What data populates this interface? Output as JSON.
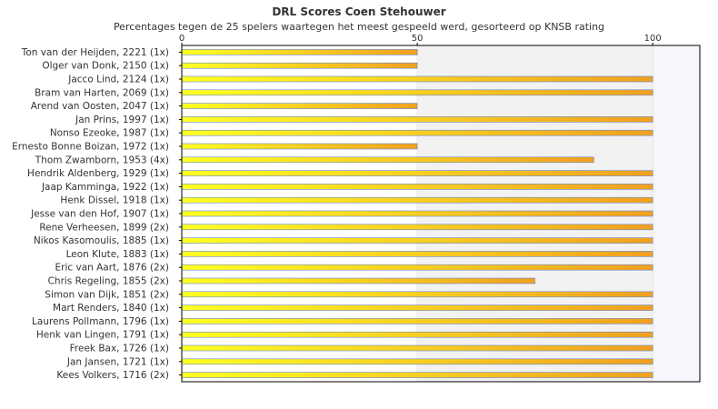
{
  "chart_data": {
    "type": "bar",
    "orientation": "horizontal",
    "title": "DRL Scores Coen Stehouwer",
    "subtitle": "Percentages tegen de 25 spelers waartegen het meest gespeeld werd, gesorteerd op KNSB rating",
    "xlim": [
      0,
      110
    ],
    "xticks": [
      0,
      50,
      100
    ],
    "grid": true,
    "categories": [
      "Ton van der Heijden, 2221 (1x)",
      "Olger van Donk, 2150 (1x)",
      "Jacco Lind, 2124 (1x)",
      "Bram van Harten, 2069 (1x)",
      "Arend van Oosten, 2047 (1x)",
      "Jan Prins, 1997 (1x)",
      "Nonso Ezeoke, 1987 (1x)",
      "Ernesto Bonne Boizan, 1972 (1x)",
      "Thom Zwamborn, 1953 (4x)",
      "Hendrik Aldenberg, 1929 (1x)",
      "Jaap Kamminga, 1922 (1x)",
      "Henk Dissel, 1918 (1x)",
      "Jesse van den Hof, 1907 (1x)",
      "Rene Verheesen, 1899 (2x)",
      "Nikos Kasomoulis, 1885 (1x)",
      "Leon Klute, 1883 (1x)",
      "Eric van Aart, 1876 (2x)",
      "Chris Regeling, 1855 (2x)",
      "Simon van Dijk, 1851 (2x)",
      "Mart Renders, 1840 (1x)",
      "Laurens Pollmann, 1796 (1x)",
      "Henk van Lingen, 1791 (1x)",
      "Freek Bax, 1726 (1x)",
      "Jan Jansen, 1721 (1x)",
      "Kees Volkers, 1716 (2x)"
    ],
    "values": [
      50,
      50,
      100,
      100,
      50,
      100,
      100,
      50,
      87.5,
      100,
      100,
      100,
      100,
      100,
      100,
      100,
      100,
      75,
      100,
      100,
      100,
      100,
      100,
      100,
      100
    ],
    "colors": {
      "bar_start": "#ffff22",
      "bar_end": "#f0a020",
      "bar_outline": "#6688cc",
      "band_1": "#ffffff",
      "band_2": "#f2f2f2",
      "band_3": "#f6f6fc",
      "axis": "#000000"
    }
  }
}
